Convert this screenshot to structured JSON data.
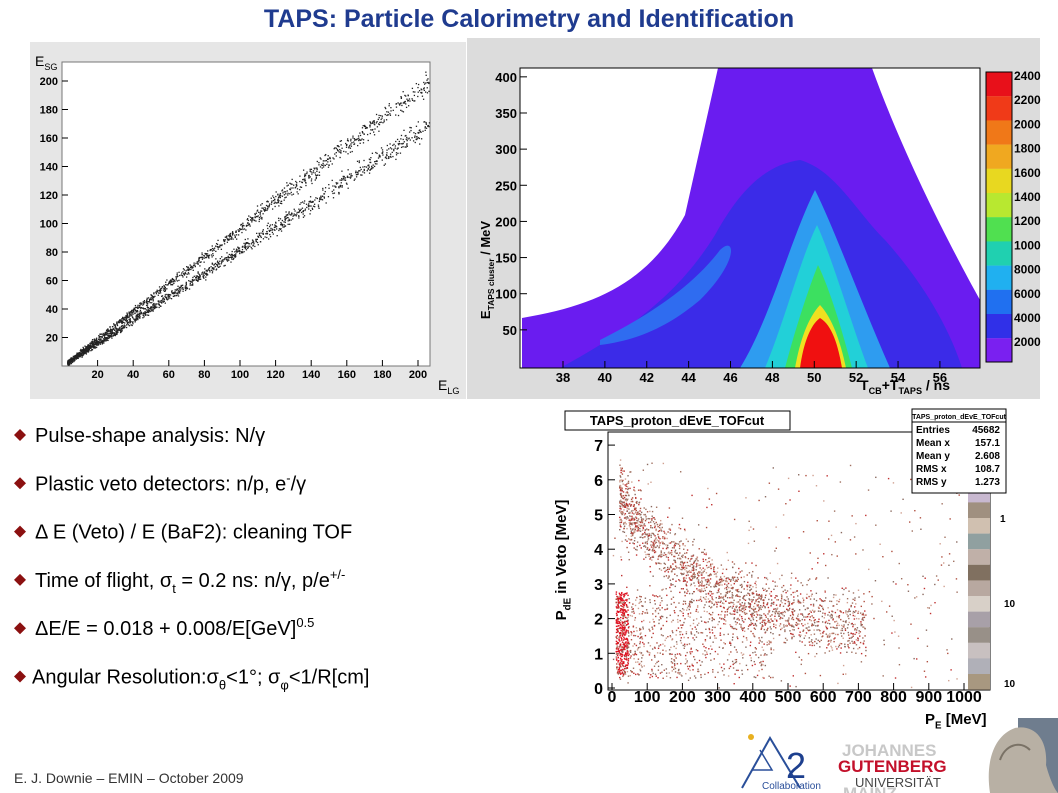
{
  "title": "TAPS: Particle Calorimetry and Identification",
  "plot_scatter": {
    "y_label": [
      {
        "text": "E"
      },
      {
        "sub": "SG"
      }
    ],
    "x_label": [
      {
        "text": "E"
      },
      {
        "sub": "LG"
      }
    ],
    "xticks": [
      20,
      40,
      60,
      80,
      100,
      120,
      140,
      160,
      180,
      200
    ],
    "yticks": [
      20,
      40,
      60,
      80,
      100,
      120,
      140,
      160,
      180,
      200
    ]
  },
  "plot_heatmap": {
    "y_label": [
      {
        "text": "E"
      },
      {
        "sub": "TAPS cluster"
      },
      {
        "text": " / MeV"
      }
    ],
    "x_label": [
      {
        "text": "T"
      },
      {
        "sub": "CB"
      },
      {
        "text": "+T"
      },
      {
        "sub": "TAPS"
      },
      {
        "text": " / ns"
      }
    ],
    "xticks": [
      38,
      40,
      42,
      44,
      46,
      48,
      50,
      52,
      54,
      56
    ],
    "yticks": [
      50,
      100,
      150,
      200,
      250,
      300,
      350,
      400
    ],
    "colorbar_labels": [
      2400,
      2200,
      2000,
      1800,
      1600,
      1400,
      1200,
      1000,
      8000,
      6000,
      4000,
      2000
    ]
  },
  "plot_veto": {
    "title": "TAPS_proton_dEvE_TOFcut",
    "stats": {
      "title": "TAPS_proton_dEvE_TOFcut",
      "rows": [
        [
          "Entries",
          45682
        ],
        [
          "Mean x",
          157.1
        ],
        [
          "Mean y",
          2.608
        ],
        [
          "RMS x",
          108.7
        ],
        [
          "RMS y",
          1.273
        ]
      ]
    },
    "y_label": [
      {
        "text": "P"
      },
      {
        "sub": "dE"
      },
      {
        "text": " in Veto [MeV]"
      }
    ],
    "x_label": [
      {
        "text": "P"
      },
      {
        "sub": "E"
      },
      {
        "text": " [MeV]"
      }
    ],
    "xticks": [
      0,
      100,
      200,
      300,
      400,
      500,
      600,
      700,
      800,
      900,
      1000
    ],
    "yticks": [
      0,
      1,
      2,
      3,
      4,
      5,
      6,
      7
    ],
    "colorbar_labels": [
      1,
      10,
      10
    ]
  },
  "bullets": [
    [
      {
        "text": "Pulse-shape analysis: N/γ"
      }
    ],
    [
      {
        "text": "Plastic veto detectors: n/p, e"
      },
      {
        "sup": "-"
      },
      {
        "text": "/γ"
      }
    ],
    [
      {
        "text": "Δ E (Veto) / E (BaF2): cleaning TOF"
      }
    ],
    [
      {
        "text": "Time of flight, σ"
      },
      {
        "sub": "t"
      },
      {
        "text": " = 0.2 ns: n/γ, p/e"
      },
      {
        "sup": "+/-"
      }
    ],
    [
      {
        "text": "ΔE/E = 0.018 + 0.008/E[GeV]"
      },
      {
        "sup": "0.5"
      }
    ],
    [
      {
        "text": "Angular Resolution:σ"
      },
      {
        "sub": "θ"
      },
      {
        "text": "<1°; σ"
      },
      {
        "sub": "φ"
      },
      {
        "text": "<1/R[cm]"
      }
    ]
  ],
  "footer": "E. J. Downie – EMIN – October 2009",
  "logos": {
    "a2": [
      "2",
      "Collaboration"
    ],
    "gutenberg": [
      "JOHANNES",
      "GUTENBERG",
      "UNIVERSITÄT",
      "MAINZ"
    ]
  }
}
